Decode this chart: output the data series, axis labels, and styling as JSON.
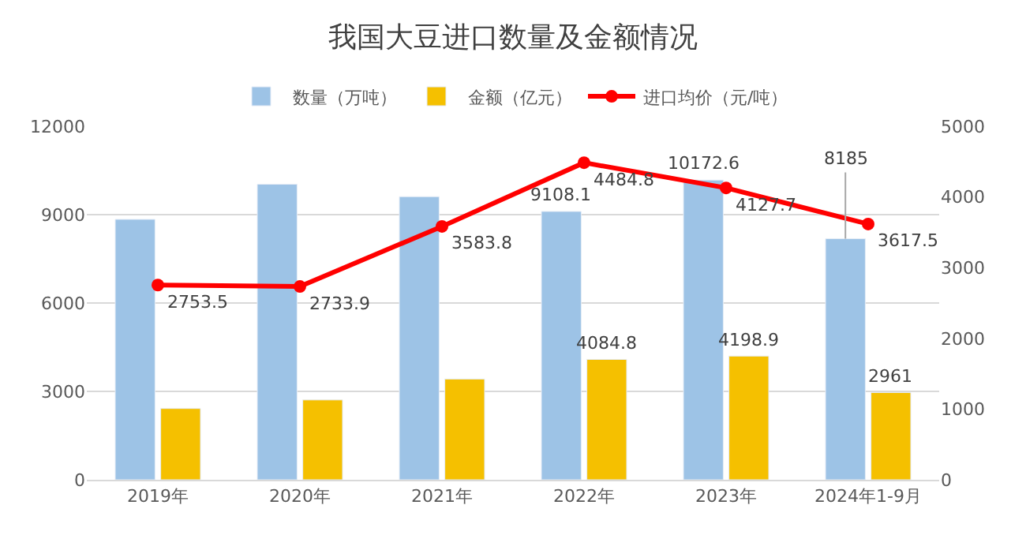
{
  "chart_data": {
    "type": "bar",
    "title": "我国大豆进口数量及金额情况",
    "categories": [
      "2019年",
      "2020年",
      "2021年",
      "2022年",
      "2023年",
      "2024年1-9月"
    ],
    "series": [
      {
        "name": "数量（万吨）",
        "color": "#9dc3e6",
        "values": [
          8840,
          10030,
          9610,
          9108.1,
          10172.6,
          8185
        ],
        "value_labels": [
          null,
          null,
          null,
          "9108.1",
          "10172.6",
          "8185"
        ]
      },
      {
        "name": "金额（亿元）",
        "color": "#f5c000",
        "values": [
          2420,
          2710,
          3420,
          4084.8,
          4198.9,
          2961
        ],
        "value_labels": [
          null,
          null,
          null,
          "4084.8",
          "4198.9",
          "2961"
        ]
      },
      {
        "name": "进口均价（元/吨）",
        "type": "line",
        "axis": "y2",
        "color": "#ff0000",
        "marker": "circle",
        "values": [
          2753.5,
          2733.9,
          3583.8,
          4484.8,
          4127.7,
          3617.5
        ],
        "value_labels": [
          "2753.5",
          "2733.9",
          "3583.8",
          "4484.8",
          "4127.7",
          "3617.5"
        ]
      }
    ],
    "ylim": [
      0,
      12000
    ],
    "yticks": [
      0,
      3000,
      6000,
      9000,
      12000
    ],
    "y2lim": [
      0,
      5000
    ],
    "y2ticks": [
      0,
      1000,
      2000,
      3000,
      4000,
      5000
    ],
    "grid": "y",
    "legend": "top"
  }
}
